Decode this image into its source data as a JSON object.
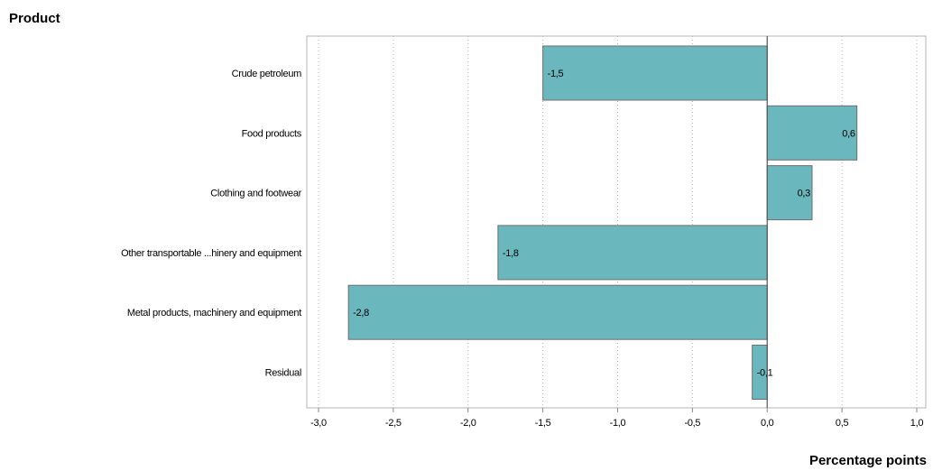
{
  "chart_data": {
    "type": "bar",
    "orientation": "horizontal",
    "title": "",
    "ylabel": "Product",
    "xlabel": "Percentage points",
    "categories": [
      "Crude petroleum",
      "Food products",
      "Clothing and footwear",
      "Other transportable ...hinery and equipment",
      "Metal products, machinery and equipment",
      "Residual"
    ],
    "values": [
      -1.5,
      0.6,
      0.3,
      -1.8,
      -2.8,
      -0.1
    ],
    "data_labels": [
      "-1,5",
      "0,6",
      "0,3",
      "-1,8",
      "-2,8",
      "-0,1"
    ],
    "xlim": [
      -3.0,
      1.0
    ],
    "xticks": [
      -3.0,
      -2.5,
      -2.0,
      -1.5,
      -1.0,
      -0.5,
      0.0,
      0.5,
      1.0
    ],
    "xtick_labels": [
      "-3,0",
      "-2,5",
      "-2,0",
      "-1,5",
      "-1,0",
      "-0,5",
      "0,0",
      "0,5",
      "1,0"
    ],
    "grid": "vertical dotted",
    "colors": {
      "bar_fill": "#6bb7be",
      "bar_stroke": "#6f6f6f",
      "grid": "#b5b5b5",
      "frame": "#b5b5b5",
      "zero_line": "#555555"
    }
  }
}
